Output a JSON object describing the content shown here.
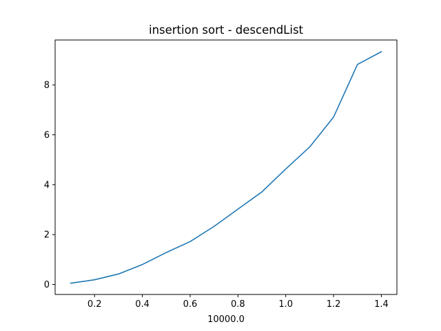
{
  "chart_data": {
    "type": "line",
    "title": "insertion sort - descendList",
    "xlabel": "10000.0",
    "ylabel": "",
    "xlim": [
      0.035,
      1.465
    ],
    "ylim": [
      -0.4,
      9.8
    ],
    "xticks": [
      0.2,
      0.4,
      0.6,
      0.8,
      1.0,
      1.2,
      1.4
    ],
    "xtick_labels": [
      "0.2",
      "0.4",
      "0.6",
      "0.8",
      "1.0",
      "1.2",
      "1.4"
    ],
    "yticks": [
      0,
      2,
      4,
      6,
      8
    ],
    "ytick_labels": [
      "0",
      "2",
      "4",
      "6",
      "8"
    ],
    "grid": false,
    "series": [
      {
        "color": "#1f77b4",
        "x": [
          0.1,
          0.2,
          0.3,
          0.4,
          0.5,
          0.6,
          0.7,
          0.8,
          0.9,
          1.0,
          1.1,
          1.2,
          1.3,
          1.4
        ],
        "y": [
          0.05,
          0.19,
          0.42,
          0.8,
          1.28,
          1.72,
          2.33,
          3.02,
          3.71,
          4.63,
          5.51,
          6.71,
          8.82,
          9.33
        ]
      }
    ]
  }
}
